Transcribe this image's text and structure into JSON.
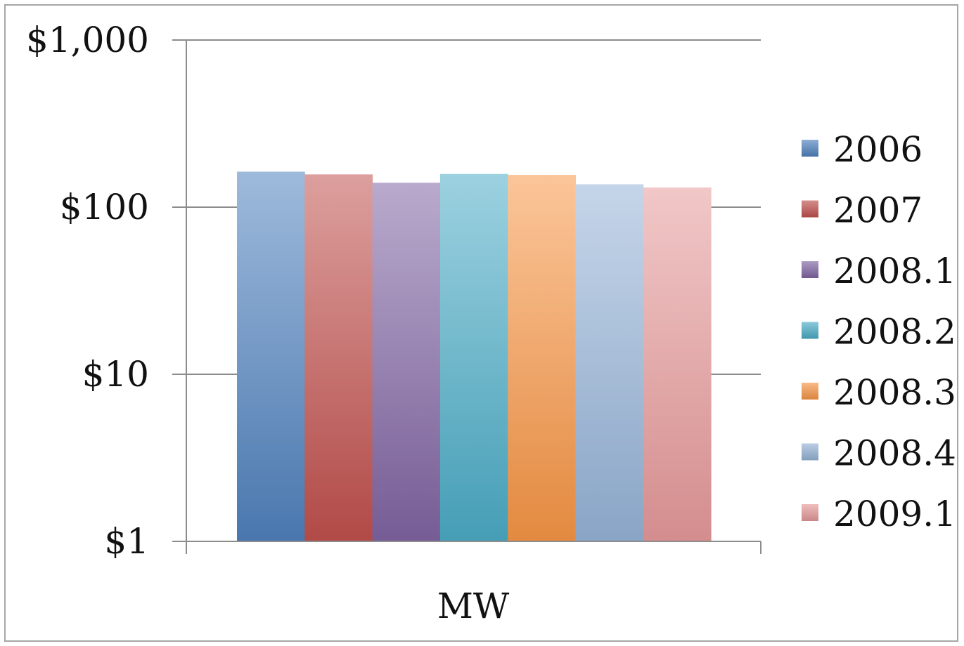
{
  "chart_data": {
    "type": "bar",
    "categories": [
      "MW"
    ],
    "y_scale": "log",
    "ylim": [
      1,
      1000
    ],
    "y_ticks": [
      {
        "value": 1,
        "label": "$1"
      },
      {
        "value": 10,
        "label": "$10"
      },
      {
        "value": 100,
        "label": "$100"
      },
      {
        "value": 1000,
        "label": "$1,000"
      }
    ],
    "grid": true,
    "legend_position": "right",
    "series": [
      {
        "name": "2006",
        "values": [
          163
        ],
        "color": "#4f81bd"
      },
      {
        "name": "2007",
        "values": [
          157
        ],
        "color": "#c0504d"
      },
      {
        "name": "2008.1",
        "values": [
          140
        ],
        "color": "#8064a2"
      },
      {
        "name": "2008.2",
        "values": [
          158
        ],
        "color": "#4bacc6"
      },
      {
        "name": "2008.3",
        "values": [
          156
        ],
        "color": "#f79646"
      },
      {
        "name": "2008.4",
        "values": [
          137
        ],
        "color": "#95b3d7"
      },
      {
        "name": "2009.1",
        "values": [
          131
        ],
        "color": "#e6999a"
      }
    ]
  }
}
